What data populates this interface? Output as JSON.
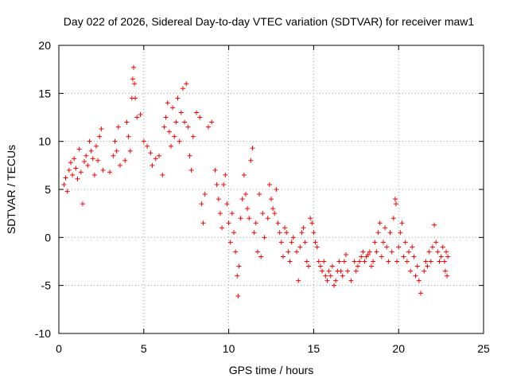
{
  "chart_data": {
    "type": "scatter",
    "title": "Day 022 of 2026, Sidereal Day-to-day VTEC variation (SDTVAR) for receiver maw1",
    "xlabel": "GPS time / hours",
    "ylabel": "SDTVAR / TECUs",
    "xlim": [
      0,
      25
    ],
    "ylim": [
      -10,
      20
    ],
    "xticks": [
      0,
      5,
      10,
      15,
      20,
      25
    ],
    "yticks": [
      -10,
      -5,
      0,
      5,
      10,
      15,
      20
    ],
    "xtick_labels": [
      "0",
      "5",
      "10",
      "15",
      "20",
      "25"
    ],
    "ytick_labels": [
      "-10",
      "-5",
      "0",
      "5",
      "10",
      "15",
      "20"
    ],
    "grid": true,
    "marker": "+",
    "series": [
      {
        "name": "SDTVAR",
        "color": "#ff0000",
        "points": [
          [
            0.3,
            5.5
          ],
          [
            0.4,
            6.2
          ],
          [
            0.5,
            4.8
          ],
          [
            0.6,
            7.0
          ],
          [
            0.7,
            7.8
          ],
          [
            0.8,
            6.5
          ],
          [
            0.9,
            8.2
          ],
          [
            1.0,
            7.2
          ],
          [
            1.1,
            6.1
          ],
          [
            1.2,
            9.2
          ],
          [
            1.3,
            6.8
          ],
          [
            1.4,
            3.5
          ],
          [
            1.5,
            7.9
          ],
          [
            1.6,
            8.5
          ],
          [
            1.7,
            7.5
          ],
          [
            1.8,
            10.0
          ],
          [
            1.9,
            9.0
          ],
          [
            2.0,
            8.2
          ],
          [
            2.1,
            6.5
          ],
          [
            2.2,
            9.5
          ],
          [
            2.3,
            8.0
          ],
          [
            2.4,
            10.5
          ],
          [
            2.5,
            11.3
          ],
          [
            2.6,
            7.0
          ],
          [
            3.0,
            6.8
          ],
          [
            3.2,
            8.5
          ],
          [
            3.3,
            10.0
          ],
          [
            3.4,
            9.0
          ],
          [
            3.5,
            11.5
          ],
          [
            3.6,
            7.5
          ],
          [
            3.9,
            8.0
          ],
          [
            4.0,
            12.0
          ],
          [
            4.1,
            10.5
          ],
          [
            4.2,
            9.0
          ],
          [
            4.3,
            14.5
          ],
          [
            4.35,
            16.5
          ],
          [
            4.4,
            17.7
          ],
          [
            4.45,
            16.0
          ],
          [
            4.5,
            14.5
          ],
          [
            4.6,
            12.5
          ],
          [
            4.8,
            12.8
          ],
          [
            5.0,
            10.0
          ],
          [
            5.2,
            9.5
          ],
          [
            5.4,
            8.8
          ],
          [
            5.5,
            7.5
          ],
          [
            5.7,
            8.2
          ],
          [
            5.9,
            8.5
          ],
          [
            6.1,
            6.5
          ],
          [
            6.2,
            11.5
          ],
          [
            6.3,
            12.5
          ],
          [
            6.4,
            14.0
          ],
          [
            6.5,
            11.0
          ],
          [
            6.6,
            9.5
          ],
          [
            6.7,
            13.5
          ],
          [
            6.8,
            10.5
          ],
          [
            6.9,
            12.0
          ],
          [
            7.0,
            14.5
          ],
          [
            7.1,
            10.0
          ],
          [
            7.2,
            13.0
          ],
          [
            7.3,
            15.5
          ],
          [
            7.4,
            12.0
          ],
          [
            7.5,
            16.0
          ],
          [
            7.6,
            11.5
          ],
          [
            7.7,
            8.5
          ],
          [
            7.8,
            7.0
          ],
          [
            7.9,
            10.5
          ],
          [
            8.1,
            13.0
          ],
          [
            8.3,
            12.5
          ],
          [
            8.4,
            3.5
          ],
          [
            8.5,
            1.5
          ],
          [
            8.6,
            4.5
          ],
          [
            8.8,
            11.5
          ],
          [
            9.0,
            12.0
          ],
          [
            9.2,
            7.0
          ],
          [
            9.3,
            5.5
          ],
          [
            9.4,
            4.0
          ],
          [
            9.5,
            2.5
          ],
          [
            9.6,
            1.0
          ],
          [
            9.7,
            5.5
          ],
          [
            9.8,
            6.5
          ],
          [
            9.9,
            3.5
          ],
          [
            10.0,
            1.5
          ],
          [
            10.1,
            -0.5
          ],
          [
            10.2,
            2.5
          ],
          [
            10.3,
            0.5
          ],
          [
            10.4,
            -1.5
          ],
          [
            10.5,
            -4.0
          ],
          [
            10.55,
            -6.1
          ],
          [
            10.6,
            -3.0
          ],
          [
            10.7,
            2.0
          ],
          [
            10.8,
            4.0
          ],
          [
            10.9,
            6.5
          ],
          [
            11.0,
            4.5
          ],
          [
            11.1,
            3.0
          ],
          [
            11.2,
            2.0
          ],
          [
            11.3,
            8.0
          ],
          [
            11.4,
            9.3
          ],
          [
            11.5,
            0.5
          ],
          [
            11.6,
            1.5
          ],
          [
            11.7,
            -1.5
          ],
          [
            11.8,
            4.5
          ],
          [
            11.9,
            -2.0
          ],
          [
            12.0,
            2.5
          ],
          [
            12.1,
            0.0
          ],
          [
            12.3,
            2.0
          ],
          [
            12.4,
            5.5
          ],
          [
            12.5,
            4.0
          ],
          [
            12.6,
            3.0
          ],
          [
            12.7,
            2.5
          ],
          [
            12.8,
            5.0
          ],
          [
            12.9,
            1.5
          ],
          [
            13.0,
            0.5
          ],
          [
            13.1,
            -0.5
          ],
          [
            13.2,
            -2.0
          ],
          [
            13.3,
            1.0
          ],
          [
            13.4,
            0.5
          ],
          [
            13.5,
            -1.5
          ],
          [
            13.6,
            -2.5
          ],
          [
            13.7,
            -0.5
          ],
          [
            13.8,
            0.0
          ],
          [
            14.0,
            -1.5
          ],
          [
            14.1,
            -4.5
          ],
          [
            14.2,
            -1.0
          ],
          [
            14.3,
            0.5
          ],
          [
            14.4,
            1.0
          ],
          [
            14.5,
            -0.5
          ],
          [
            14.6,
            -2.5
          ],
          [
            14.7,
            -3.0
          ],
          [
            14.8,
            2.0
          ],
          [
            14.9,
            1.5
          ],
          [
            15.0,
            0.5
          ],
          [
            15.1,
            -0.5
          ],
          [
            15.2,
            -1.0
          ],
          [
            15.3,
            -2.5
          ],
          [
            15.4,
            -3.0
          ],
          [
            15.5,
            -3.5
          ],
          [
            15.6,
            -2.5
          ],
          [
            15.7,
            -4.0
          ],
          [
            15.8,
            -4.5
          ],
          [
            15.9,
            -3.5
          ],
          [
            16.0,
            -4.0
          ],
          [
            16.1,
            -3.0
          ],
          [
            16.2,
            -5.0
          ],
          [
            16.3,
            -4.5
          ],
          [
            16.4,
            -3.5
          ],
          [
            16.5,
            -2.5
          ],
          [
            16.6,
            -3.5
          ],
          [
            16.7,
            -4.0
          ],
          [
            16.8,
            -2.5
          ],
          [
            16.9,
            -1.8
          ],
          [
            17.0,
            -3.5
          ],
          [
            17.2,
            -4.5
          ],
          [
            17.4,
            -2.5
          ],
          [
            17.5,
            -3.5
          ],
          [
            17.6,
            -3.0
          ],
          [
            17.7,
            -2.5
          ],
          [
            17.8,
            -2.0
          ],
          [
            17.9,
            -1.5
          ],
          [
            18.0,
            -2.5
          ],
          [
            18.1,
            -2.0
          ],
          [
            18.2,
            -1.8
          ],
          [
            18.3,
            -1.5
          ],
          [
            18.4,
            -3.0
          ],
          [
            18.5,
            -2.5
          ],
          [
            18.6,
            -0.5
          ],
          [
            18.7,
            -1.5
          ],
          [
            18.8,
            0.5
          ],
          [
            18.9,
            1.5
          ],
          [
            19.0,
            -2.0
          ],
          [
            19.1,
            -0.5
          ],
          [
            19.2,
            1.0
          ],
          [
            19.3,
            -1.0
          ],
          [
            19.4,
            -2.5
          ],
          [
            19.5,
            0.5
          ],
          [
            19.6,
            -1.5
          ],
          [
            19.7,
            2.0
          ],
          [
            19.8,
            4.0
          ],
          [
            19.85,
            3.5
          ],
          [
            19.9,
            -2.5
          ],
          [
            20.0,
            -1.0
          ],
          [
            20.1,
            0.5
          ],
          [
            20.2,
            1.5
          ],
          [
            20.3,
            -2.0
          ],
          [
            20.4,
            -0.5
          ],
          [
            20.5,
            -2.5
          ],
          [
            20.6,
            -1.5
          ],
          [
            20.7,
            -3.5
          ],
          [
            20.8,
            -1.0
          ],
          [
            20.9,
            -2.0
          ],
          [
            21.0,
            -4.0
          ],
          [
            21.1,
            -3.0
          ],
          [
            21.2,
            -4.5
          ],
          [
            21.3,
            -5.8
          ],
          [
            21.5,
            -3.5
          ],
          [
            21.6,
            -2.5
          ],
          [
            21.7,
            -3.0
          ],
          [
            21.8,
            -1.5
          ],
          [
            21.9,
            -2.5
          ],
          [
            22.0,
            -1.0
          ],
          [
            22.1,
            1.3
          ],
          [
            22.2,
            -0.5
          ],
          [
            22.3,
            -1.5
          ],
          [
            22.4,
            -2.5
          ],
          [
            22.5,
            -2.0
          ],
          [
            22.6,
            -1.0
          ],
          [
            22.7,
            -2.5
          ],
          [
            22.75,
            -3.5
          ],
          [
            22.8,
            -1.5
          ],
          [
            22.85,
            -4.0
          ],
          [
            22.9,
            -2.0
          ]
        ]
      }
    ]
  }
}
